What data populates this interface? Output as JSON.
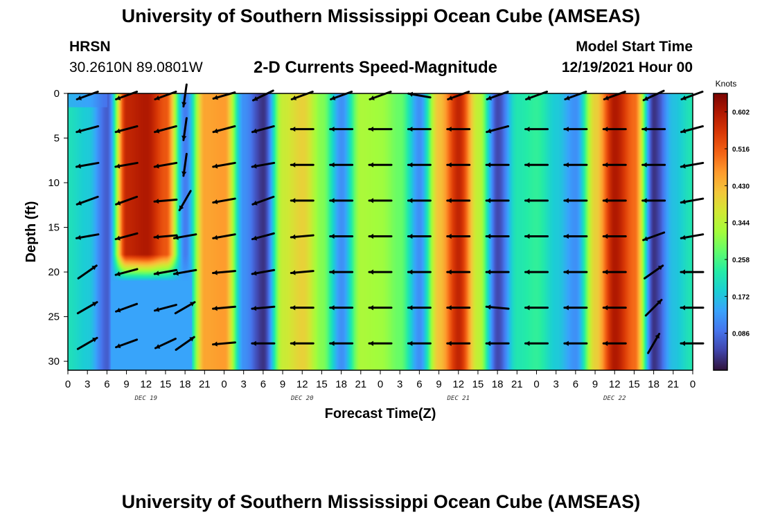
{
  "page": {
    "title_top": "University of Southern Mississippi Ocean Cube (AMSEAS)",
    "title_bottom": "University of Southern Mississippi Ocean Cube (AMSEAS)",
    "station": "HRSN",
    "coords": "30.2610N  89.0801W",
    "chart_title": "2-D Currents Speed-Magnitude",
    "model_start_label": "Model Start Time",
    "model_start_value": "12/19/2021 Hour 00"
  },
  "colors": {
    "scale": [
      "#30123b",
      "#4145ab",
      "#4675ed",
      "#39a2fc",
      "#1bcfd4",
      "#24eca6",
      "#61fc6c",
      "#a4fc3b",
      "#d1e834",
      "#f3c63a",
      "#fe9b2d",
      "#f36315",
      "#d93806",
      "#b11901",
      "#7a0402"
    ]
  },
  "chart_data": {
    "type": "heatmap",
    "title": "2-D Currents Speed-Magnitude",
    "xlabel": "Forecast Time(Z)",
    "ylabel": "Depth (ft)",
    "x_tick_labels": [
      "0",
      "3",
      "6",
      "9",
      "12",
      "15",
      "18",
      "21",
      "0",
      "3",
      "6",
      "9",
      "12",
      "15",
      "18",
      "21",
      "0",
      "3",
      "6",
      "9",
      "12",
      "15",
      "18",
      "21",
      "0",
      "3",
      "6",
      "9",
      "12",
      "15",
      "18",
      "21",
      "0"
    ],
    "x_range_hours": [
      0,
      96
    ],
    "day_labels": [
      {
        "label": "DEC 19",
        "hour": 12
      },
      {
        "label": "DEC 20",
        "hour": 36
      },
      {
        "label": "DEC 21",
        "hour": 60
      },
      {
        "label": "DEC 22",
        "hour": 84
      }
    ],
    "y_tick_labels": [
      "0",
      "5",
      "10",
      "15",
      "20",
      "25",
      "30"
    ],
    "y_ticks": [
      0,
      5,
      10,
      15,
      20,
      25,
      30
    ],
    "ylim": [
      0,
      31
    ],
    "colorbar": {
      "unit": "Knots",
      "min": 0.0,
      "max": 0.645,
      "labels": [
        "0.602",
        "0.516",
        "0.430",
        "0.344",
        "0.258",
        "0.172",
        "0.086"
      ],
      "label_values": [
        0.602,
        0.516,
        0.43,
        0.344,
        0.258,
        0.172,
        0.086
      ]
    },
    "speed_profile_hours": [
      0,
      3,
      6,
      9,
      12,
      15,
      18,
      21,
      24,
      27,
      30,
      33,
      36,
      39,
      42,
      45,
      48,
      51,
      54,
      57,
      60,
      63,
      66,
      69,
      72,
      75,
      78,
      81,
      84,
      87,
      90,
      93,
      96
    ],
    "speed_profile_knots": [
      0.21,
      0.18,
      0.07,
      0.58,
      0.6,
      0.52,
      0.1,
      0.45,
      0.46,
      0.12,
      0.03,
      0.36,
      0.4,
      0.3,
      0.12,
      0.33,
      0.32,
      0.28,
      0.12,
      0.42,
      0.58,
      0.35,
      0.05,
      0.22,
      0.24,
      0.18,
      0.12,
      0.4,
      0.6,
      0.5,
      0.03,
      0.17,
      0.22
    ],
    "speed_notes": "Near-bottom (20-31 ft) speeds on Dec 19 are reduced to about 0.10-0.20 knots between hours 0-18; upper layers follow the listed profile.",
    "vector_depths_ft": [
      0,
      4,
      8,
      12,
      16,
      20,
      24,
      28
    ],
    "vector_hours": [
      3,
      9,
      15,
      18,
      24,
      30,
      36,
      42,
      48,
      54,
      60,
      66,
      72,
      78,
      84,
      90,
      96
    ],
    "vector_directions_deg": [
      [
        200,
        200,
        200,
        262,
        196,
        206,
        200,
        200,
        200,
        170,
        200,
        200,
        200,
        200,
        200,
        205,
        200
      ],
      [
        195,
        195,
        195,
        262,
        195,
        195,
        180,
        180,
        180,
        180,
        180,
        195,
        180,
        180,
        180,
        180,
        195
      ],
      [
        190,
        190,
        190,
        262,
        190,
        190,
        180,
        180,
        180,
        180,
        180,
        180,
        180,
        180,
        180,
        180,
        190
      ],
      [
        200,
        200,
        185,
        240,
        190,
        200,
        180,
        180,
        180,
        180,
        180,
        180,
        180,
        180,
        180,
        180,
        190
      ],
      [
        190,
        195,
        185,
        190,
        190,
        195,
        185,
        180,
        180,
        180,
        180,
        180,
        180,
        180,
        180,
        200,
        190
      ],
      [
        35,
        195,
        190,
        190,
        185,
        190,
        185,
        180,
        180,
        180,
        180,
        180,
        180,
        180,
        180,
        35,
        180
      ],
      [
        30,
        200,
        195,
        30,
        185,
        185,
        180,
        180,
        180,
        180,
        180,
        175,
        180,
        180,
        180,
        45,
        180
      ],
      [
        30,
        200,
        205,
        35,
        185,
        180,
        180,
        180,
        180,
        180,
        180,
        180,
        180,
        180,
        180,
        60,
        180
      ]
    ]
  }
}
